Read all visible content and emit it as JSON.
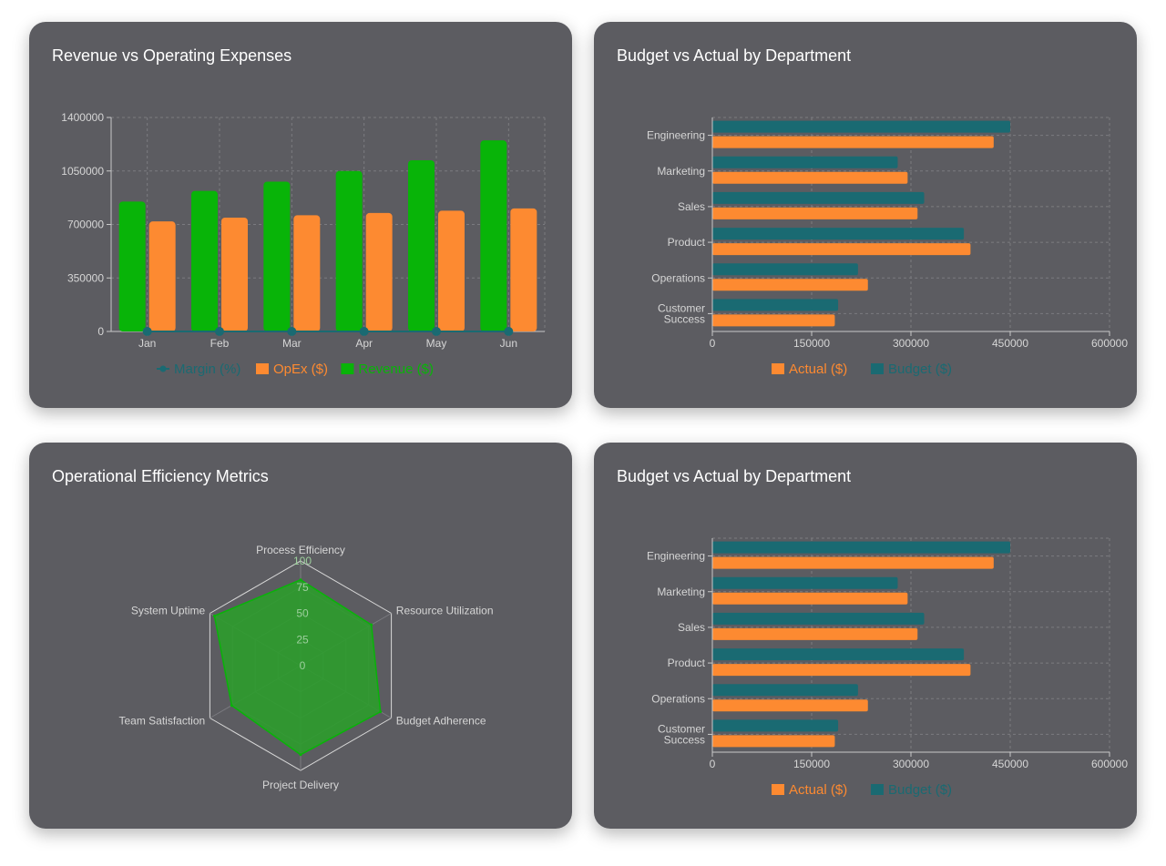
{
  "colors": {
    "revenue": "#08b408",
    "opex": "#fd8a31",
    "margin": "#1a6a72",
    "actual": "#fd8a31",
    "budget": "#1a6a72",
    "radar_fill": "#2c9c2c",
    "radar_line": "#08b408",
    "grid": "#7b7b80",
    "axis": "#c9c9c9",
    "card_bg": "#5c5c61"
  },
  "chart_data": [
    {
      "id": "revenue-opex",
      "type": "bar",
      "title": "Revenue vs Operating Expenses",
      "categories": [
        "Jan",
        "Feb",
        "Mar",
        "Apr",
        "May",
        "Jun"
      ],
      "series": [
        {
          "name": "Revenue ($)",
          "values": [
            850000,
            920000,
            980000,
            1050000,
            1120000,
            1250000
          ]
        },
        {
          "name": "OpEx ($)",
          "values": [
            720000,
            745000,
            760000,
            775000,
            790000,
            805000
          ]
        },
        {
          "name": "Margin (%)",
          "type": "line",
          "values": [
            15.3,
            19.0,
            22.4,
            26.2,
            29.5,
            35.6
          ]
        }
      ],
      "y_ticks": [
        "0",
        "350000",
        "700000",
        "1050000",
        "1400000"
      ],
      "ylim": [
        0,
        1400000
      ],
      "legend": [
        "Margin (%)",
        "OpEx ($)",
        "Revenue ($)"
      ],
      "grid": true,
      "legend_position": "bottom"
    },
    {
      "id": "budget-actual-1",
      "type": "bar",
      "orientation": "horizontal",
      "title": "Budget vs Actual by Department",
      "categories": [
        "Engineering",
        "Marketing",
        "Sales",
        "Product",
        "Operations",
        "Customer Success"
      ],
      "category_lines": [
        [
          "Engineering"
        ],
        [
          "Marketing"
        ],
        [
          "Sales"
        ],
        [
          "Product"
        ],
        [
          "Operations"
        ],
        [
          "Customer",
          "Success"
        ]
      ],
      "series": [
        {
          "name": "Budget ($)",
          "values": [
            450000,
            280000,
            320000,
            380000,
            220000,
            190000
          ]
        },
        {
          "name": "Actual ($)",
          "values": [
            425000,
            295000,
            310000,
            390000,
            235000,
            185000
          ]
        }
      ],
      "x_ticks": [
        "0",
        "150000",
        "300000",
        "450000",
        "600000"
      ],
      "xlim": [
        0,
        600000
      ],
      "legend": [
        "Actual ($)",
        "Budget ($)"
      ],
      "grid": true,
      "legend_position": "bottom"
    },
    {
      "id": "efficiency-radar",
      "type": "radar",
      "title": "Operational Efficiency Metrics",
      "axes": [
        "Process Efficiency",
        "Resource Utilization",
        "Budget Adherence",
        "Project Delivery",
        "Team Satisfaction",
        "System Uptime"
      ],
      "values": [
        82,
        78,
        88,
        85,
        76,
        95
      ],
      "r_ticks": [
        "0",
        "25",
        "50",
        "75",
        "100"
      ],
      "rlim": [
        0,
        100
      ]
    },
    {
      "id": "budget-actual-2",
      "type": "bar",
      "orientation": "horizontal",
      "title": "Budget vs Actual by Department",
      "categories": [
        "Engineering",
        "Marketing",
        "Sales",
        "Product",
        "Operations",
        "Customer Success"
      ],
      "category_lines": [
        [
          "Engineering"
        ],
        [
          "Marketing"
        ],
        [
          "Sales"
        ],
        [
          "Product"
        ],
        [
          "Operations"
        ],
        [
          "Customer",
          "Success"
        ]
      ],
      "series": [
        {
          "name": "Budget ($)",
          "values": [
            450000,
            280000,
            320000,
            380000,
            220000,
            190000
          ]
        },
        {
          "name": "Actual ($)",
          "values": [
            425000,
            295000,
            310000,
            390000,
            235000,
            185000
          ]
        }
      ],
      "x_ticks": [
        "0",
        "150000",
        "300000",
        "450000",
        "600000"
      ],
      "xlim": [
        0,
        600000
      ],
      "legend": [
        "Actual ($)",
        "Budget ($)"
      ],
      "grid": true,
      "legend_position": "bottom"
    }
  ]
}
